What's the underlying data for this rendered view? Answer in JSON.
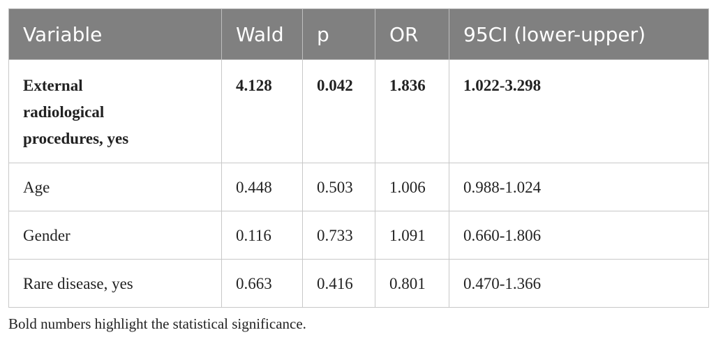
{
  "table": {
    "header": [
      "Variable",
      "Wald",
      "p",
      "OR",
      "95CI (lower-upper)"
    ],
    "rows": [
      [
        "External radiological procedures, yes",
        "4.128",
        "0.042",
        "1.836",
        "1.022-3.298"
      ],
      [
        "Age",
        "0.448",
        "0.503",
        "1.006",
        "0.988-1.024"
      ],
      [
        "Gender",
        "0.116",
        "0.733",
        "1.091",
        "0.660-1.806"
      ],
      [
        "Rare disease, yes",
        "0.663",
        "0.416",
        "0.801",
        "0.470-1.366"
      ]
    ],
    "footnote": "Bold numbers highlight the statistical significance."
  }
}
